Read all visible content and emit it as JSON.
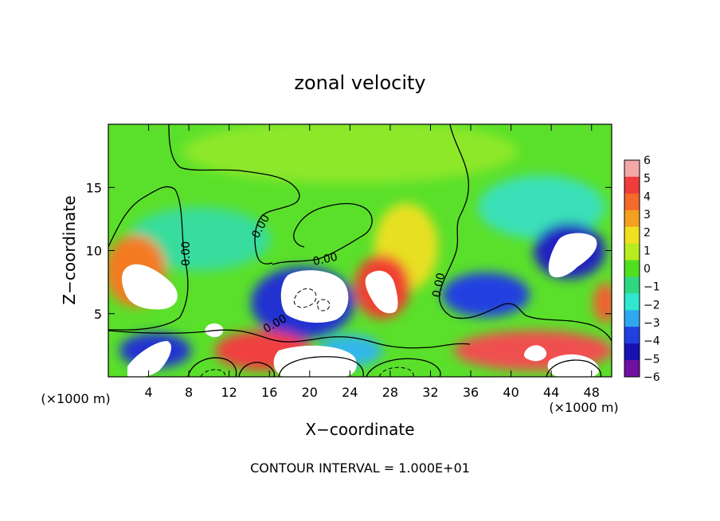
{
  "chart_data": {
    "type": "heatmap",
    "title": "zonal velocity",
    "xlabel": "X−coordinate",
    "ylabel": "Z−coordinate",
    "x_unit": "(×1000 m)",
    "footer": "CONTOUR INTERVAL = 1.000E+01",
    "xlim": [
      0,
      50
    ],
    "ylim": [
      0,
      20
    ],
    "x_ticks": [
      4,
      8,
      12,
      16,
      20,
      24,
      28,
      32,
      36,
      40,
      44,
      48
    ],
    "y_ticks": [
      5,
      10,
      15
    ],
    "colorbar": {
      "levels": [
        6,
        5,
        4,
        3,
        2,
        1,
        0,
        -1,
        -2,
        -3,
        -4,
        -5,
        -6
      ],
      "level_labels": [
        "6",
        "5",
        "4",
        "3",
        "2",
        "1",
        "0",
        "−1",
        "−2",
        "−3",
        "−4",
        "−5",
        "−6"
      ],
      "colors": [
        "#f4a7a7",
        "#f03c3c",
        "#f46a2a",
        "#f4a020",
        "#f0e020",
        "#b8ec20",
        "#50e020",
        "#2ed880",
        "#30e8d0",
        "#30a8f0",
        "#2040e0",
        "#1810b0",
        "#7010a0"
      ]
    },
    "contour_labels": [
      "0.00",
      "0.00",
      "0.00",
      "0.00",
      "0.00"
    ],
    "grid": false,
    "legend": "colorbar-right"
  }
}
